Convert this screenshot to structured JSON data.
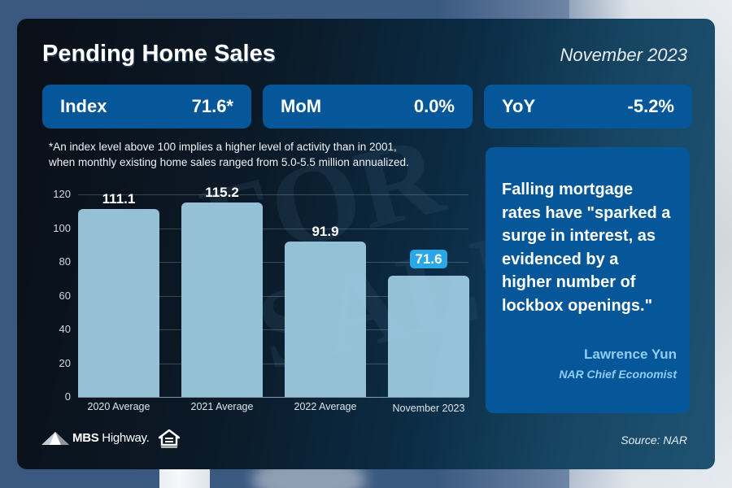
{
  "header": {
    "title": "Pending Home Sales",
    "date": "November 2023"
  },
  "stats": [
    {
      "label": "Index",
      "value": "71.6*"
    },
    {
      "label": "MoM",
      "value": "0.0%"
    },
    {
      "label": "YoY",
      "value": "-5.2%"
    }
  ],
  "footnote": {
    "line1": "*An index level above 100 implies a higher level of activity than in 2001,",
    "line2": "when monthly existing home sales ranged from 5.0-5.5 million annualized."
  },
  "chart_data": {
    "type": "bar",
    "title": "",
    "xlabel": "",
    "ylabel": "",
    "categories": [
      "2020 Average",
      "2021 Average",
      "2022 Average",
      "November 2023"
    ],
    "values": [
      111.1,
      115.2,
      91.9,
      71.6
    ],
    "value_labels": [
      "111.1",
      "115.2",
      "91.9",
      "71.6"
    ],
    "highlighted_index": 3,
    "ylim": [
      0,
      120
    ],
    "yticks": [
      "120",
      "100",
      "80",
      "60",
      "40",
      "20",
      "0"
    ],
    "grid": true,
    "legend": null,
    "colors": {
      "bar": "#9bc8de",
      "highlight_label_bg": "#29a8e8"
    }
  },
  "quote": {
    "text": "Falling mortgage rates have \"sparked a surge in interest, as evidenced by a higher number of lockbox openings.\"",
    "author": "Lawrence Yun",
    "role": "NAR Chief Economist"
  },
  "footer": {
    "logo_text_bold": "MBS",
    "logo_text": " Highway.",
    "equal_housing_icon": "equal-housing-opportunity-icon",
    "source": "Source: NAR"
  },
  "colors": {
    "card_box": "#06569a",
    "quote_attribution": "#90cdf0"
  }
}
